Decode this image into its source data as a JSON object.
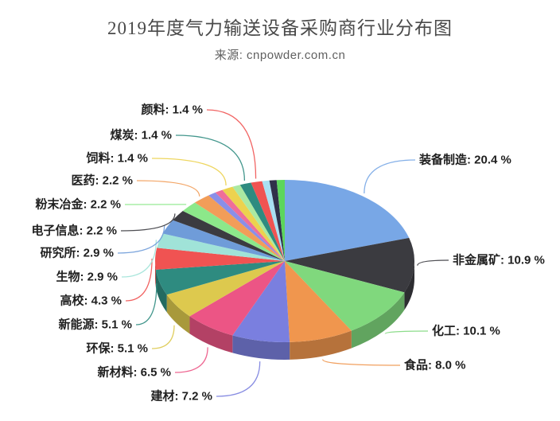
{
  "chart_data": {
    "type": "pie",
    "projection": "3d",
    "title": "2019年度气力输送设备采购商行业分布图",
    "source": "来源: cnpowder.com.cn",
    "unit": "%",
    "label_format": "{name}: {value} %",
    "direction": "clockwise",
    "start_angle": "top",
    "legend": "none",
    "segments": [
      {
        "label": "装备制造",
        "value": 20.4,
        "color": "#78a7e6",
        "labeled": true
      },
      {
        "label": "非金属矿",
        "value": 10.9,
        "color": "#3b3b40",
        "labeled": true
      },
      {
        "label": "化工",
        "value": 10.1,
        "color": "#80d87d",
        "labeled": true
      },
      {
        "label": "食品",
        "value": 8.0,
        "color": "#f0964e",
        "labeled": true
      },
      {
        "label": "建材",
        "value": 7.2,
        "color": "#7a7fdf",
        "labeled": true
      },
      {
        "label": "新材料",
        "value": 6.5,
        "color": "#ec5585",
        "labeled": true
      },
      {
        "label": "环保",
        "value": 5.1,
        "color": "#ddc94e",
        "labeled": true
      },
      {
        "label": "新能源",
        "value": 5.1,
        "color": "#2e8b80",
        "labeled": true
      },
      {
        "label": "高校",
        "value": 4.3,
        "color": "#f05352",
        "labeled": true
      },
      {
        "label": "生物",
        "value": 2.9,
        "color": "#a0e3d8",
        "labeled": true
      },
      {
        "label": "研究所",
        "value": 2.9,
        "color": "#6f9cd9",
        "labeled": true
      },
      {
        "label": "电子信息",
        "value": 2.2,
        "color": "#3b3b40",
        "labeled": true
      },
      {
        "label": "粉末冶金",
        "value": 2.2,
        "color": "#8ce88a",
        "labeled": true
      },
      {
        "label": "医药",
        "value": 2.2,
        "color": "#f29d59",
        "labeled": true
      },
      {
        "label": "",
        "value": 1.0,
        "color": "#8a8fe8",
        "labeled": false
      },
      {
        "label": "",
        "value": 1.0,
        "color": "#ef6e99",
        "labeled": false
      },
      {
        "label": "饲料",
        "value": 1.4,
        "color": "#ecd24e",
        "labeled": true
      },
      {
        "label": "",
        "value": 1.0,
        "color": "#abe9a2",
        "labeled": false
      },
      {
        "label": "煤炭",
        "value": 1.4,
        "color": "#2e8b80",
        "labeled": true
      },
      {
        "label": "颜料",
        "value": 1.4,
        "color": "#f05352",
        "labeled": true
      },
      {
        "label": "",
        "value": 0.9,
        "color": "#a9dff2",
        "labeled": false
      },
      {
        "label": "",
        "value": 0.9,
        "color": "#30304a",
        "labeled": false
      },
      {
        "label": "",
        "value": 1.0,
        "color": "#5cd65c",
        "labeled": false
      }
    ]
  },
  "colors": {
    "background": "#ffffff",
    "title_text": "#4a4a4a",
    "source_text": "#606060",
    "label_text": "#1f1f1f"
  }
}
